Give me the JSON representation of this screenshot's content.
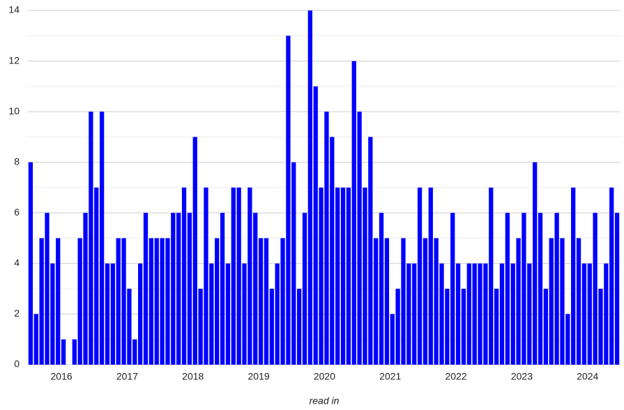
{
  "chart_data": {
    "type": "bar",
    "x_label": "read in",
    "categories": [
      null,
      null,
      null,
      null,
      null,
      null,
      "2016",
      null,
      null,
      null,
      null,
      null,
      null,
      null,
      null,
      null,
      null,
      null,
      "2017",
      null,
      null,
      null,
      null,
      null,
      null,
      null,
      null,
      null,
      null,
      null,
      "2018",
      null,
      null,
      null,
      null,
      null,
      null,
      null,
      null,
      null,
      null,
      null,
      "2019",
      null,
      null,
      null,
      null,
      null,
      null,
      null,
      null,
      null,
      null,
      null,
      "2020",
      null,
      null,
      null,
      null,
      null,
      null,
      null,
      null,
      null,
      null,
      null,
      "2021",
      null,
      null,
      null,
      null,
      null,
      null,
      null,
      null,
      null,
      null,
      null,
      "2022",
      null,
      null,
      null,
      null,
      null,
      null,
      null,
      null,
      null,
      null,
      null,
      "2023",
      null,
      null,
      null,
      null,
      null,
      null,
      null,
      null,
      null,
      null,
      null,
      "2024",
      null,
      null,
      null,
      null,
      null
    ],
    "values": [
      8,
      2,
      5,
      6,
      4,
      5,
      1,
      0,
      1,
      5,
      6,
      10,
      7,
      10,
      4,
      4,
      5,
      5,
      3,
      1,
      4,
      6,
      5,
      5,
      5,
      5,
      6,
      6,
      7,
      6,
      9,
      3,
      7,
      4,
      5,
      6,
      4,
      7,
      7,
      4,
      7,
      6,
      5,
      5,
      3,
      4,
      5,
      13,
      8,
      3,
      6,
      14,
      11,
      7,
      10,
      9,
      7,
      7,
      7,
      12,
      10,
      7,
      9,
      5,
      6,
      5,
      2,
      3,
      5,
      4,
      4,
      7,
      5,
      7,
      5,
      4,
      3,
      6,
      4,
      3,
      4,
      4,
      4,
      4,
      7,
      3,
      4,
      6,
      4,
      5,
      6,
      4,
      8,
      6,
      3,
      5,
      6,
      5,
      2,
      7,
      5,
      4,
      4,
      6,
      3,
      4,
      7,
      6
    ],
    "color": "#0000ff",
    "ylim": [
      0,
      14
    ],
    "yticks": [
      0,
      2,
      4,
      6,
      8,
      10,
      12,
      14
    ],
    "grid": true,
    "minor_grid": true
  }
}
